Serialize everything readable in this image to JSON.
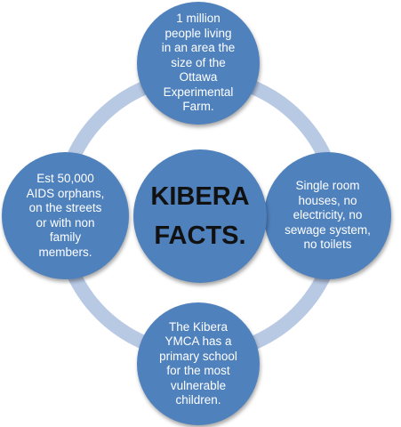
{
  "colors": {
    "node_fill": "#4f81bd",
    "ring": "#b8c9e4",
    "node_text": "#ffffff",
    "center_text": "#111111"
  },
  "diagram": {
    "center": "KIBERA\nFACTS.",
    "nodes": {
      "top": "1 million\npeople  living\nin an area the\nsize of the\nOttawa\nExperimental\nFarm.",
      "right": "Single room\nhouses, no\nelectricity, no\nsewage system,\nno  toilets",
      "bottom": "The Kibera\nYMCA has a\nprimary school\nfor the most\nvulnerable\nchildren.",
      "left": "Est 50,000\nAIDS orphans,\non the streets\nor with non\nfamily\nmembers."
    }
  }
}
